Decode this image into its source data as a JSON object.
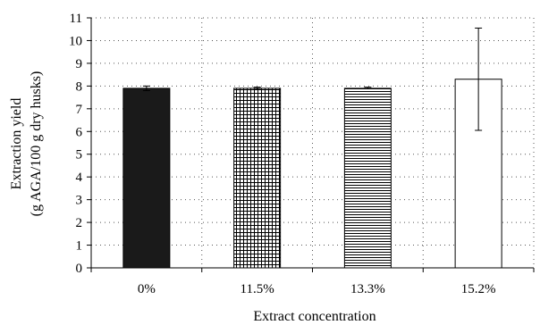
{
  "chart_data": {
    "type": "bar",
    "title": "",
    "xlabel": "Extract concentration",
    "ylabel_lines": [
      "Extraction yield",
      "(g AGA/100 g dry husks)"
    ],
    "ylim": [
      0,
      11
    ],
    "yticks": [
      0,
      1,
      2,
      3,
      4,
      5,
      6,
      7,
      8,
      9,
      10,
      11
    ],
    "grid": "dotted",
    "legend": "none",
    "categories": [
      "0%",
      "11.5%",
      "13.3%",
      "15.2%"
    ],
    "values": [
      7.9,
      7.9,
      7.9,
      8.3
    ],
    "error_low": [
      7.8,
      7.85,
      7.88,
      6.05
    ],
    "error_high": [
      8.0,
      7.95,
      7.95,
      10.55
    ],
    "bar_patterns": [
      "solid-black",
      "grid",
      "horizontal-lines",
      "empty"
    ]
  }
}
